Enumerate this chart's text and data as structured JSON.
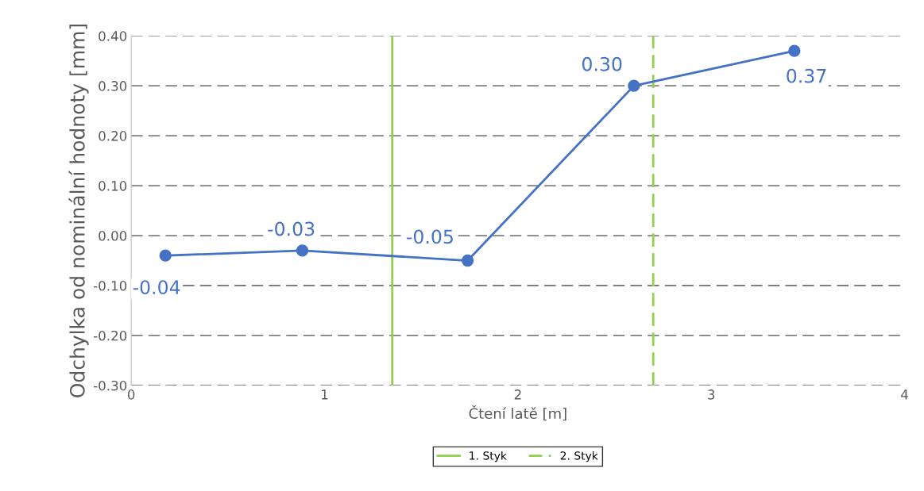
{
  "chart_data": {
    "type": "line",
    "xlabel": "Čtení latě [m]",
    "ylabel": "Odchylka od nominální hodnoty [mm]",
    "x": [
      0.177,
      0.885,
      1.74,
      2.6,
      3.43
    ],
    "series": [
      {
        "color": "#4472c4",
        "values": [
          -0.04,
          -0.03,
          -0.05,
          0.3,
          0.37
        ],
        "value_labels": [
          "-0.04",
          "-0.03",
          "-0.05",
          "0.30",
          "0.37"
        ]
      }
    ],
    "marker": "circle",
    "line_style": "solid",
    "xlim": [
      0,
      4
    ],
    "xticks": [
      0,
      1,
      2,
      3,
      4
    ],
    "ylim": [
      -0.3,
      0.4
    ],
    "yticks": [
      {
        "value": -0.3,
        "label": "-0.30"
      },
      {
        "value": -0.2,
        "label": "-0.20"
      },
      {
        "value": -0.1,
        "label": "-0.10"
      },
      {
        "value": 0,
        "label": "0.00"
      },
      {
        "value": 0.1,
        "label": "0.10"
      },
      {
        "value": 0.2,
        "label": "0.20"
      },
      {
        "value": 0.3,
        "label": "0.30"
      },
      {
        "value": 0.4,
        "label": "0.40"
      }
    ],
    "ref_lines": [
      {
        "axis": "x",
        "value": 1.35,
        "label": "1. Styk",
        "color": "#92d050",
        "line_style": "solid"
      },
      {
        "axis": "x",
        "value": 2.7,
        "label": "2. Styk",
        "color": "#92d050",
        "line_style": "dashed"
      }
    ],
    "grid": "y",
    "legend": "bottom"
  }
}
